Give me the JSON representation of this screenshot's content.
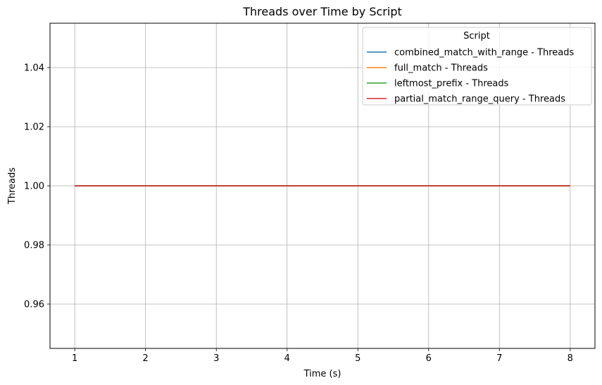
{
  "chart_data": {
    "type": "line",
    "title": "Threads over Time by Script",
    "xlabel": "Time (s)",
    "ylabel": "Threads",
    "x": [
      1,
      2,
      3,
      4,
      5,
      6,
      7,
      8
    ],
    "xlim": [
      0.65,
      8.35
    ],
    "ylim": [
      0.945,
      1.055
    ],
    "xticks": [
      "1",
      "2",
      "3",
      "4",
      "5",
      "6",
      "7",
      "8"
    ],
    "yticks": [
      "0.96",
      "0.98",
      "1.00",
      "1.02",
      "1.04"
    ],
    "grid": true,
    "legend": {
      "title": "Script",
      "placement": "top-right"
    },
    "series": [
      {
        "name": "combined_match_with_range - Threads",
        "color": "#1f77b4",
        "values": [
          1,
          1,
          1,
          1,
          1,
          1,
          1,
          1
        ]
      },
      {
        "name": "full_match - Threads",
        "color": "#ff7f0e",
        "values": [
          1,
          1,
          1,
          1,
          1,
          1,
          1,
          1
        ]
      },
      {
        "name": "leftmost_prefix - Threads",
        "color": "#2ca02c",
        "values": [
          1,
          1,
          1,
          1,
          1,
          1,
          1,
          1
        ]
      },
      {
        "name": "partial_match_range_query - Threads",
        "color": "#d62728",
        "values": [
          1,
          1,
          1,
          1,
          1,
          1,
          1,
          1
        ]
      }
    ]
  }
}
